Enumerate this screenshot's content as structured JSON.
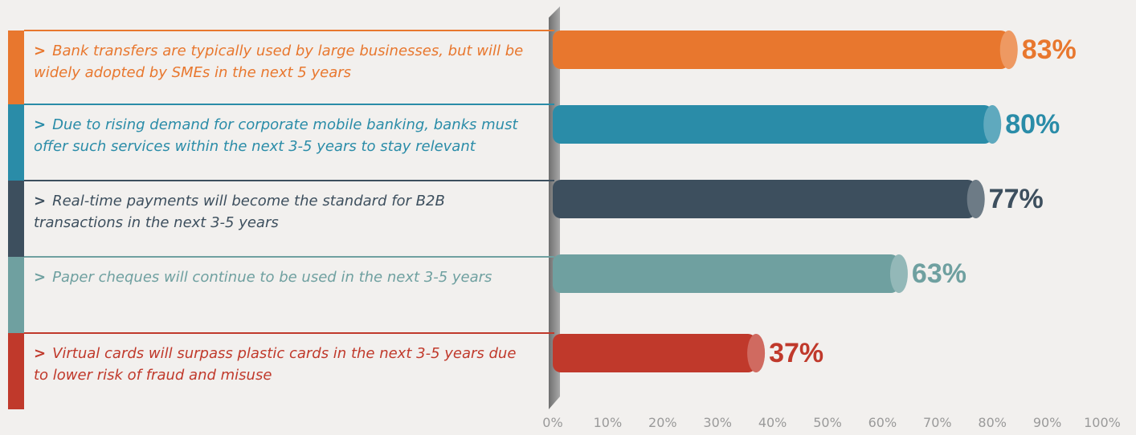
{
  "chart_data": {
    "type": "bar",
    "orientation": "horizontal",
    "bullet": ">",
    "categories": [
      "Bank transfers are typically used by large businesses, but will be widely adopted by SMEs in the next 5 years",
      "Due to rising demand for corporate mobile banking, banks must offer such services within the next 3-5 years to stay relevant",
      "Real-time payments will become the standard for B2B transactions in the next 3-5 years",
      "Paper cheques will continue to be used in the next 3-5 years",
      "Virtual cards will surpass plastic cards in the next 3-5 years due to lower risk of fraud and misuse"
    ],
    "values": [
      83,
      80,
      77,
      63,
      37
    ],
    "value_labels": [
      "83%",
      "80%",
      "77%",
      "63%",
      "37%"
    ],
    "colors": [
      "#e8772e",
      "#2a8ca8",
      "#3d4f5e",
      "#6fa0a0",
      "#c0392b"
    ],
    "xlim": [
      0,
      100
    ],
    "xticks": [
      {
        "value": 0,
        "label": "0%"
      },
      {
        "value": 10,
        "label": "10%"
      },
      {
        "value": 20,
        "label": "20%"
      },
      {
        "value": 30,
        "label": "30%"
      },
      {
        "value": 40,
        "label": "40%"
      },
      {
        "value": 50,
        "label": "50%"
      },
      {
        "value": 60,
        "label": "60%"
      },
      {
        "value": 70,
        "label": "70%"
      },
      {
        "value": 80,
        "label": "80%"
      },
      {
        "value": 90,
        "label": "90%"
      },
      {
        "value": 100,
        "label": "100%"
      }
    ],
    "grid": false
  }
}
